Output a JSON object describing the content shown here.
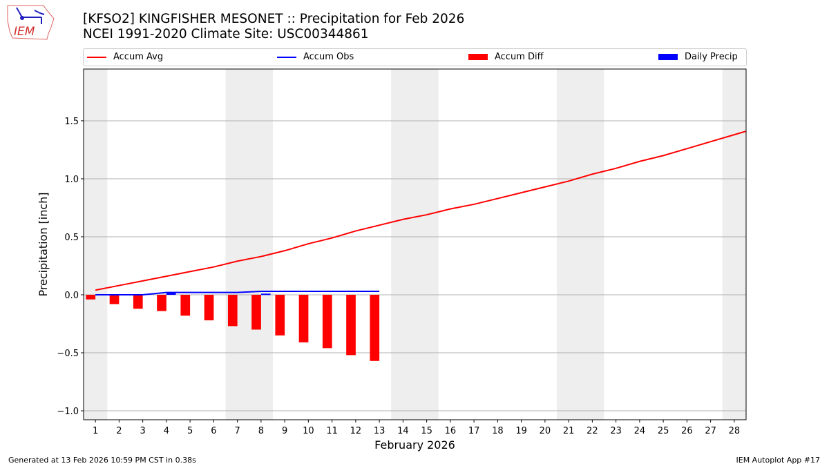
{
  "header": {
    "title_line1": "[KFSO2] KINGFISHER MESONET :: Precipitation for Feb 2026",
    "title_line2": "NCEI 1991-2020 Climate Site: USC00344861",
    "logo_text": "IEM"
  },
  "footer": {
    "left": "Generated at 13 Feb 2026 10:59 PM CST in 0.38s",
    "right": "IEM Autoplot App #17"
  },
  "colors": {
    "avg": "#ff0000",
    "obs": "#0000ff",
    "diff": "#ff0000",
    "daily": "#0000ff",
    "weekend": "#eeeeee"
  },
  "chart_data": {
    "type": "line",
    "xlabel": "February 2026",
    "ylabel": "Precipitation [inch]",
    "xlim": [
      0.5,
      28.5
    ],
    "ylim": [
      -1.077,
      1.946
    ],
    "x_ticks": [
      1,
      2,
      3,
      4,
      5,
      6,
      7,
      8,
      9,
      10,
      11,
      12,
      13,
      14,
      15,
      16,
      17,
      18,
      19,
      20,
      21,
      22,
      23,
      24,
      25,
      26,
      27,
      28
    ],
    "y_ticks": [
      -1.0,
      -0.5,
      0.0,
      0.5,
      1.0,
      1.5
    ],
    "y_tick_labels": [
      "−1.0",
      "−0.5",
      "0.0",
      "0.5",
      "1.0",
      "1.5"
    ],
    "grid": "horizontal",
    "legend": {
      "placement": "top",
      "entries": [
        "Accum Avg",
        "Accum Obs",
        "Accum Diff",
        "Daily Precip"
      ]
    },
    "weekend_spans": [
      [
        0.5,
        1.5
      ],
      [
        6.5,
        8.5
      ],
      [
        13.5,
        15.5
      ],
      [
        20.5,
        22.5
      ],
      [
        27.5,
        28.5
      ]
    ],
    "series": [
      {
        "name": "Accum Avg",
        "kind": "line",
        "x": [
          1,
          2,
          3,
          4,
          5,
          6,
          7,
          8,
          9,
          10,
          11,
          12,
          13,
          14,
          15,
          16,
          17,
          18,
          19,
          20,
          21,
          22,
          23,
          24,
          25,
          26,
          27,
          28,
          28.5
        ],
        "values": [
          0.04,
          0.08,
          0.12,
          0.16,
          0.2,
          0.24,
          0.29,
          0.33,
          0.38,
          0.44,
          0.49,
          0.55,
          0.6,
          0.65,
          0.69,
          0.74,
          0.78,
          0.83,
          0.88,
          0.93,
          0.98,
          1.04,
          1.09,
          1.15,
          1.2,
          1.26,
          1.32,
          1.38,
          1.41
        ]
      },
      {
        "name": "Accum Obs",
        "kind": "line",
        "x": [
          1,
          2,
          3,
          4,
          5,
          6,
          7,
          8,
          9,
          10,
          11,
          12,
          13
        ],
        "values": [
          0,
          0,
          0,
          0.02,
          0.02,
          0.02,
          0.02,
          0.03,
          0.03,
          0.03,
          0.03,
          0.03,
          0.03
        ]
      },
      {
        "name": "Accum Diff",
        "kind": "bar",
        "x": [
          1,
          2,
          3,
          4,
          5,
          6,
          7,
          8,
          9,
          10,
          11,
          12,
          13
        ],
        "values": [
          -0.04,
          -0.08,
          -0.12,
          -0.14,
          -0.18,
          -0.22,
          -0.27,
          -0.3,
          -0.35,
          -0.41,
          -0.46,
          -0.52,
          -0.57
        ]
      },
      {
        "name": "Daily Precip",
        "kind": "bar",
        "x": [
          4,
          8
        ],
        "values": [
          0.02,
          0.01
        ]
      }
    ]
  }
}
